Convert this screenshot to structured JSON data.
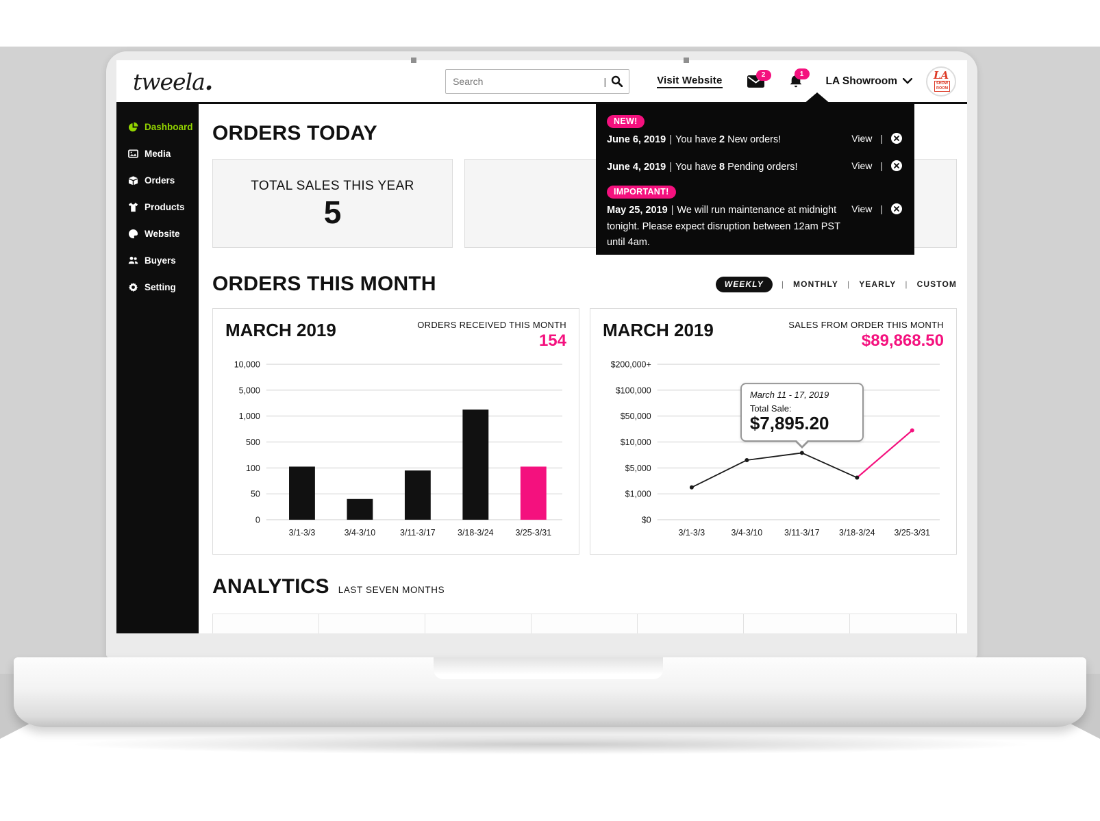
{
  "brand": {
    "logo_text": "tweela",
    "logo_dot": "."
  },
  "ui": {
    "pipe": "|",
    "view_label": "View"
  },
  "topbar": {
    "search_placeholder": "Search",
    "visit_website_label": "Visit Website",
    "mail_badge_count": "2",
    "bell_badge_count": "1",
    "account_name": "LA Showroom",
    "avatar_text_la": "LA",
    "avatar_text_show": "SHOW",
    "avatar_text_room": "ROOM"
  },
  "sidebar": {
    "items": [
      {
        "label": "Dashboard",
        "icon": "pie-chart-icon",
        "active": true
      },
      {
        "label": "Media",
        "icon": "image-icon",
        "active": false
      },
      {
        "label": "Orders",
        "icon": "box-icon",
        "active": false
      },
      {
        "label": "Products",
        "icon": "tshirt-icon",
        "active": false
      },
      {
        "label": "Website",
        "icon": "palette-icon",
        "active": false
      },
      {
        "label": "Buyers",
        "icon": "users-icon",
        "active": false
      },
      {
        "label": "Setting",
        "icon": "gear-icon",
        "active": false
      }
    ]
  },
  "orders_today": {
    "title": "ORDERS TODAY",
    "primary_card": {
      "label": "TOTAL SALES THIS YEAR",
      "value": "5"
    }
  },
  "notifications": {
    "items": [
      {
        "badge": "NEW!",
        "date": "June 6, 2019",
        "msg_pre": "You have ",
        "msg_bold": "2",
        "msg_post": " New orders!",
        "action": "View"
      },
      {
        "badge": "",
        "date": "June 4, 2019",
        "msg_pre": "You have ",
        "msg_bold": "8",
        "msg_post": " Pending orders!",
        "action": "View"
      },
      {
        "badge": "IMPORTANT!",
        "date": "May 25, 2019",
        "msg_pre": "We will run maintenance at midnight tonight. Please expect disruption between 12am PST until 4am.",
        "msg_bold": "",
        "msg_post": "",
        "action": "View"
      }
    ]
  },
  "orders_this_month": {
    "title": "ORDERS THIS MONTH",
    "tabs": [
      {
        "label": "WEEKLY",
        "active": true
      },
      {
        "label": "MONTHLY",
        "active": false
      },
      {
        "label": "YEARLY",
        "active": false
      },
      {
        "label": "CUSTOM",
        "active": false
      }
    ]
  },
  "analytics": {
    "title": "ANALYTICS",
    "subtitle": "LAST SEVEN MONTHS",
    "visible_columns": 7
  },
  "chart_data": [
    {
      "type": "bar",
      "title": "MARCH 2019",
      "metric_label": "ORDERS RECEIVED THIS MONTH",
      "metric_value": "154",
      "categories": [
        "3/1-3/3",
        "3/4-3/10",
        "3/11-3/17",
        "3/18-3/24",
        "3/25-3/31"
      ],
      "values": [
        120,
        40,
        95,
        2000,
        120
      ],
      "y_ticks": [
        0,
        50,
        100,
        500,
        1000,
        5000,
        10000
      ],
      "y_tick_labels": [
        "0",
        "50",
        "100",
        "500",
        "1,000",
        "5,000",
        "10,000"
      ],
      "y_scale": "non-linear, equal-spaced ticks",
      "xlabel": "",
      "ylabel": "",
      "grid": true,
      "highlight_index": 4,
      "bar_color": "#111111",
      "highlight_color": "#F4117E"
    },
    {
      "type": "line",
      "title": "MARCH 2019",
      "metric_label": "SALES FROM ORDER THIS MONTH",
      "metric_value": "$89,868.50",
      "categories": [
        "3/1-3/3",
        "3/4-3/10",
        "3/11-3/17",
        "3/18-3/24",
        "3/25-3/31"
      ],
      "values": [
        2000,
        6500,
        7895.2,
        3500,
        28000
      ],
      "y_ticks": [
        0,
        1000,
        5000,
        10000,
        50000,
        100000,
        200000
      ],
      "y_tick_labels": [
        "$0",
        "$1,000",
        "$5,000",
        "$10,000",
        "$50,000",
        "$100,000",
        "$200,000+"
      ],
      "y_scale": "non-linear, equal-spaced ticks",
      "xlabel": "",
      "ylabel": "",
      "grid": true,
      "highlight_segment_from": 3,
      "line_color": "#1a1a1a",
      "highlight_color": "#F4117E",
      "tooltip": {
        "title": "March 11 - 17, 2019",
        "label": "Total Sale:",
        "value": "$7,895.20",
        "point_index": 2
      }
    }
  ],
  "colors": {
    "accent_pink": "#F4117E",
    "active_green": "#93D500",
    "panel_black": "#0A0A0A"
  }
}
